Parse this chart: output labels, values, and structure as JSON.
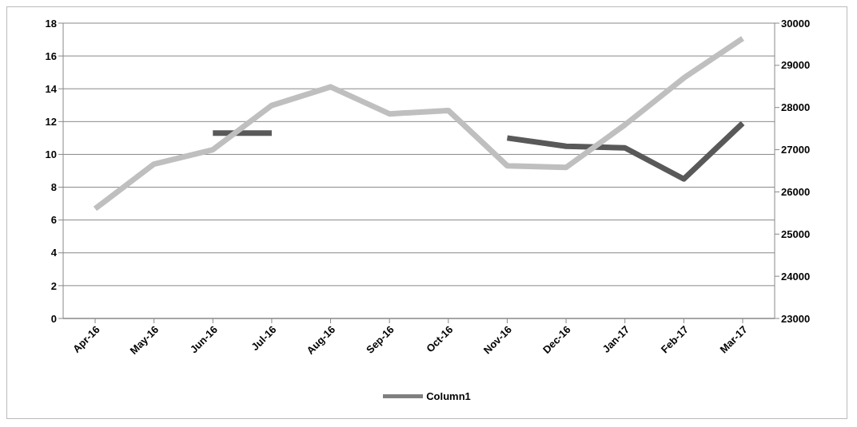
{
  "chart_data": {
    "type": "line",
    "categories": [
      "Apr-16",
      "May-16",
      "Jun-16",
      "Jul-16",
      "Aug-16",
      "Sep-16",
      "Oct-16",
      "Nov-16",
      "Dec-16",
      "Jan-17",
      "Feb-17",
      "Mar-17"
    ],
    "series": [
      {
        "color": "#595959",
        "values": [
          null,
          null,
          11.3,
          11.3,
          null,
          null,
          null,
          11.0,
          10.5,
          10.4,
          8.5,
          11.9
        ]
      },
      {
        "name": "Column1",
        "color": "#808080",
        "values": [
          null,
          null,
          null,
          null,
          null,
          null,
          null,
          null,
          null,
          null,
          null,
          null
        ]
      },
      {
        "color": "#bfbfbf",
        "axis": "y2",
        "values": [
          25600,
          26660,
          27000,
          28050,
          28490,
          27850,
          27930,
          26620,
          26580,
          27590,
          28700,
          29640
        ]
      }
    ],
    "ylim": [
      0,
      18
    ],
    "yticks": [
      0,
      2,
      4,
      6,
      8,
      10,
      12,
      14,
      16,
      18
    ],
    "y2lim": [
      23000,
      30000
    ],
    "y2ticks": [
      23000,
      24000,
      25000,
      26000,
      27000,
      28000,
      29000,
      30000
    ],
    "grid": "y",
    "legend": "bottom",
    "marker": "none",
    "line_style": "solid"
  }
}
